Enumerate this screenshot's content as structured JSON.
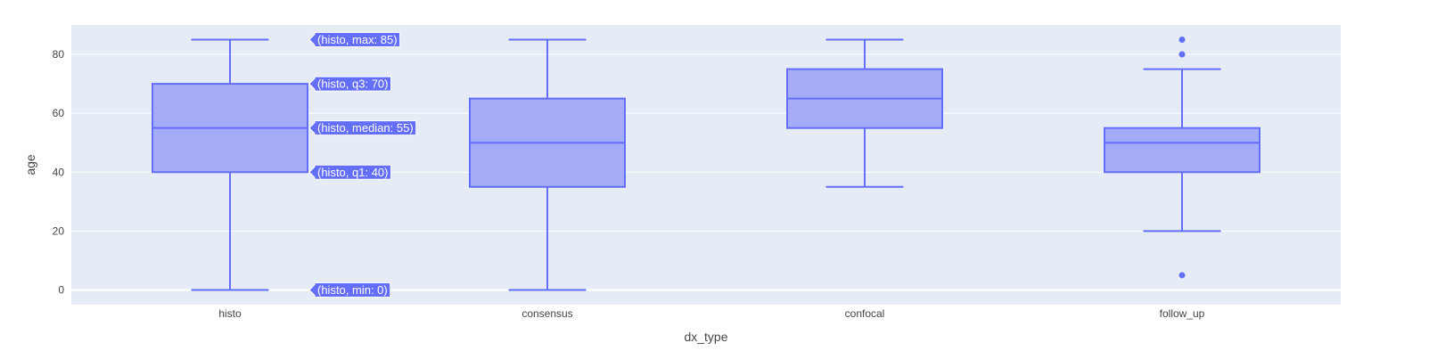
{
  "chart_data": {
    "type": "box",
    "xlabel": "dx_type",
    "ylabel": "age",
    "ylim": [
      -5,
      90
    ],
    "yticks": [
      0,
      20,
      40,
      60,
      80
    ],
    "grid": true,
    "colors": {
      "plot_bg": "#E5ECF6",
      "grid": "#FFFFFF",
      "box_line": "#636EFA",
      "box_fill": "#A4ACF7",
      "hover_bg": "#636EFA"
    },
    "boxes": [
      {
        "category": "histo",
        "min": 0,
        "q1": 40,
        "median": 55,
        "q3": 70,
        "max": 85,
        "outliers": []
      },
      {
        "category": "consensus",
        "min": 0,
        "q1": 35,
        "median": 50,
        "q3": 65,
        "max": 85,
        "outliers": []
      },
      {
        "category": "confocal",
        "min": 35,
        "q1": 55,
        "median": 65,
        "q3": 75,
        "max": 85,
        "outliers": []
      },
      {
        "category": "follow_up",
        "min": 20,
        "q1": 40,
        "median": 50,
        "q3": 55,
        "max": 75,
        "outliers": [
          85,
          80,
          5
        ]
      }
    ],
    "hover_labels": [
      {
        "category": "histo",
        "value": 85,
        "text": "(histo, max: 85)"
      },
      {
        "category": "histo",
        "value": 70,
        "text": "(histo, q3: 70)"
      },
      {
        "category": "histo",
        "value": 55,
        "text": "(histo, median: 55)"
      },
      {
        "category": "histo",
        "value": 40,
        "text": "(histo, q1: 40)"
      },
      {
        "category": "histo",
        "value": 0,
        "text": "(histo, min: 0)"
      }
    ]
  }
}
